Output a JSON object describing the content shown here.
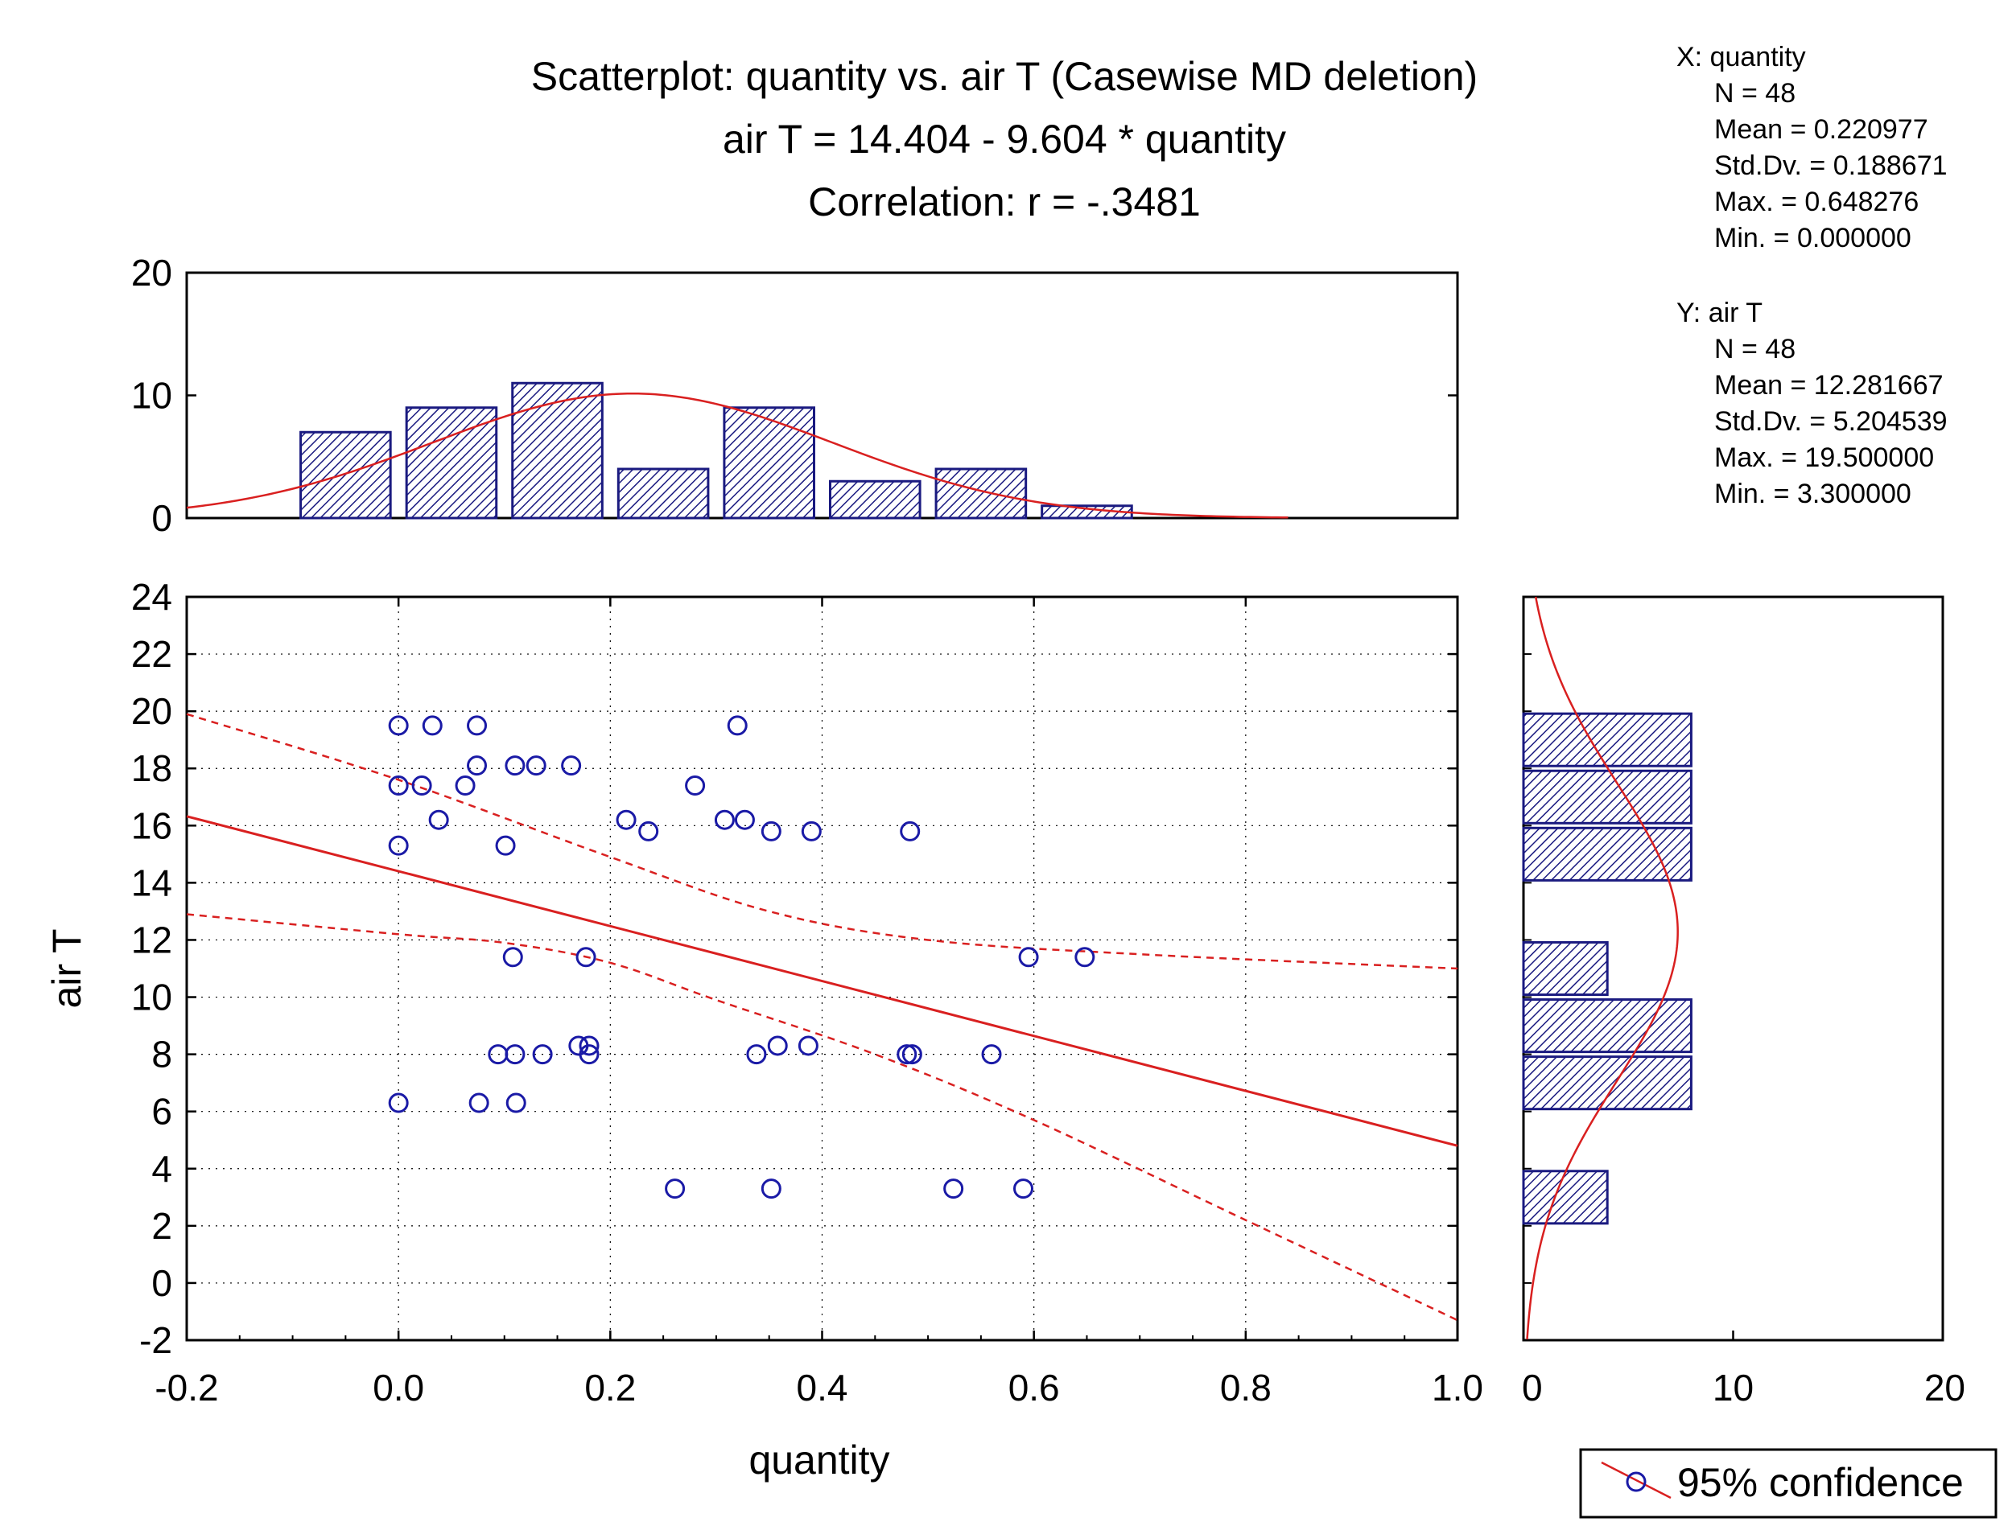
{
  "chart_data": [
    {
      "type": "scatter",
      "title": "Scatterplot: quantity vs. air T (Casewise MD deletion)",
      "equation": "air T = 14.404 - 9.604  * quantity",
      "correlation": "Correlation: r = -.3481",
      "xlabel": "quantity",
      "ylabel": "air T",
      "xlim": [
        -0.2,
        1.0
      ],
      "ylim": [
        -2,
        24
      ],
      "xticks": [
        "-0.2",
        "0.0",
        "0.2",
        "0.4",
        "0.6",
        "0.8",
        "1.0"
      ],
      "yticks": [
        "-2",
        "0",
        "2",
        "4",
        "6",
        "8",
        "10",
        "12",
        "14",
        "16",
        "18",
        "20",
        "22",
        "24"
      ],
      "grid": true,
      "regression": {
        "intercept": 14.404,
        "slope": -9.604
      },
      "confidence_upper": [
        [
          -0.2,
          19.9
        ],
        [
          0.0,
          17.6
        ],
        [
          0.2,
          14.9
        ],
        [
          0.35,
          13.0
        ],
        [
          0.5,
          12.0
        ],
        [
          0.7,
          11.5
        ],
        [
          1.0,
          11.0
        ]
      ],
      "confidence_lower": [
        [
          -0.2,
          12.9
        ],
        [
          0.0,
          12.2
        ],
        [
          0.1,
          11.9
        ],
        [
          0.2,
          11.2
        ],
        [
          0.3,
          9.9
        ],
        [
          0.45,
          8.0
        ],
        [
          0.6,
          5.7
        ],
        [
          0.8,
          2.2
        ],
        [
          1.0,
          -1.3
        ]
      ],
      "series": [
        {
          "marker": "circle",
          "points": [
            [
              0.0,
              19.5
            ],
            [
              0.032,
              19.5
            ],
            [
              0.074,
              19.5
            ],
            [
              0.32,
              19.5
            ],
            [
              0.0,
              17.4
            ],
            [
              0.022,
              17.4
            ],
            [
              0.063,
              17.4
            ],
            [
              0.28,
              17.4
            ],
            [
              0.074,
              18.1
            ],
            [
              0.11,
              18.1
            ],
            [
              0.13,
              18.1
            ],
            [
              0.163,
              18.1
            ],
            [
              0.038,
              16.2
            ],
            [
              0.215,
              16.2
            ],
            [
              0.308,
              16.2
            ],
            [
              0.327,
              16.2
            ],
            [
              0.236,
              15.8
            ],
            [
              0.352,
              15.8
            ],
            [
              0.39,
              15.8
            ],
            [
              0.483,
              15.8
            ],
            [
              0.0,
              15.3
            ],
            [
              0.101,
              15.3
            ],
            [
              0.108,
              11.4
            ],
            [
              0.177,
              11.4
            ],
            [
              0.595,
              11.4
            ],
            [
              0.648,
              11.4
            ],
            [
              0.17,
              8.3
            ],
            [
              0.18,
              8.3
            ],
            [
              0.358,
              8.3
            ],
            [
              0.387,
              8.3
            ],
            [
              0.094,
              8.0
            ],
            [
              0.11,
              8.0
            ],
            [
              0.136,
              8.0
            ],
            [
              0.18,
              8.0
            ],
            [
              0.338,
              8.0
            ],
            [
              0.48,
              8.0
            ],
            [
              0.485,
              8.0
            ],
            [
              0.56,
              8.0
            ],
            [
              0.0,
              6.3
            ],
            [
              0.076,
              6.3
            ],
            [
              0.111,
              6.3
            ],
            [
              0.261,
              3.3
            ],
            [
              0.352,
              3.3
            ],
            [
              0.524,
              3.3
            ],
            [
              0.59,
              3.3
            ]
          ]
        }
      ]
    },
    {
      "type": "bar",
      "orientation": "vertical",
      "description_role": "top histogram of quantity",
      "xlim": [
        -0.2,
        1.0
      ],
      "ylim": [
        0,
        20
      ],
      "yticks": [
        "0",
        "10",
        "20"
      ],
      "bin_width": 0.1,
      "bins": [
        [
          -0.1,
          0.0,
          7
        ],
        [
          0.0,
          0.1,
          9
        ],
        [
          0.1,
          0.2,
          11
        ],
        [
          0.2,
          0.3,
          4
        ],
        [
          0.3,
          0.4,
          9
        ],
        [
          0.4,
          0.5,
          3
        ],
        [
          0.5,
          0.6,
          4
        ],
        [
          0.6,
          0.7,
          1
        ]
      ],
      "normal_curve": {
        "mean": 0.220977,
        "sd": 0.188671,
        "n": 48
      }
    },
    {
      "type": "bar",
      "orientation": "horizontal",
      "description_role": "right histogram of air T",
      "xlim": [
        0,
        20
      ],
      "xticks": [
        "0",
        "10",
        "20"
      ],
      "ylim": [
        -2,
        24
      ],
      "bins": [
        [
          2,
          4,
          4
        ],
        [
          6,
          8,
          8
        ],
        [
          8,
          10,
          8
        ],
        [
          10,
          12,
          4
        ],
        [
          14,
          16,
          8
        ],
        [
          16,
          18,
          8
        ],
        [
          18,
          20,
          8
        ]
      ],
      "normal_curve": {
        "mean": 12.281667,
        "sd": 5.204539,
        "n": 48
      }
    }
  ],
  "stats": {
    "x": {
      "header": "X:  quantity",
      "lines": [
        "N = 48",
        "Mean = 0.220977",
        "Std.Dv. = 0.188671",
        "Max. = 0.648276",
        "Min. = 0.000000"
      ]
    },
    "y": {
      "header": "Y:  air T",
      "lines": [
        "N = 48",
        "Mean = 12.281667",
        "Std.Dv. = 5.204539",
        "Max. = 19.500000",
        "Min. = 3.300000"
      ]
    }
  },
  "legend": {
    "label": "95% confidence",
    "placement": "bottom-right"
  },
  "colors": {
    "point": "#1a1aa6",
    "bar_fill": "#1a1a80",
    "bar_edge": "#1a1a80",
    "fit_line": "#d92020",
    "grid": "#000000",
    "frame": "#000000"
  }
}
